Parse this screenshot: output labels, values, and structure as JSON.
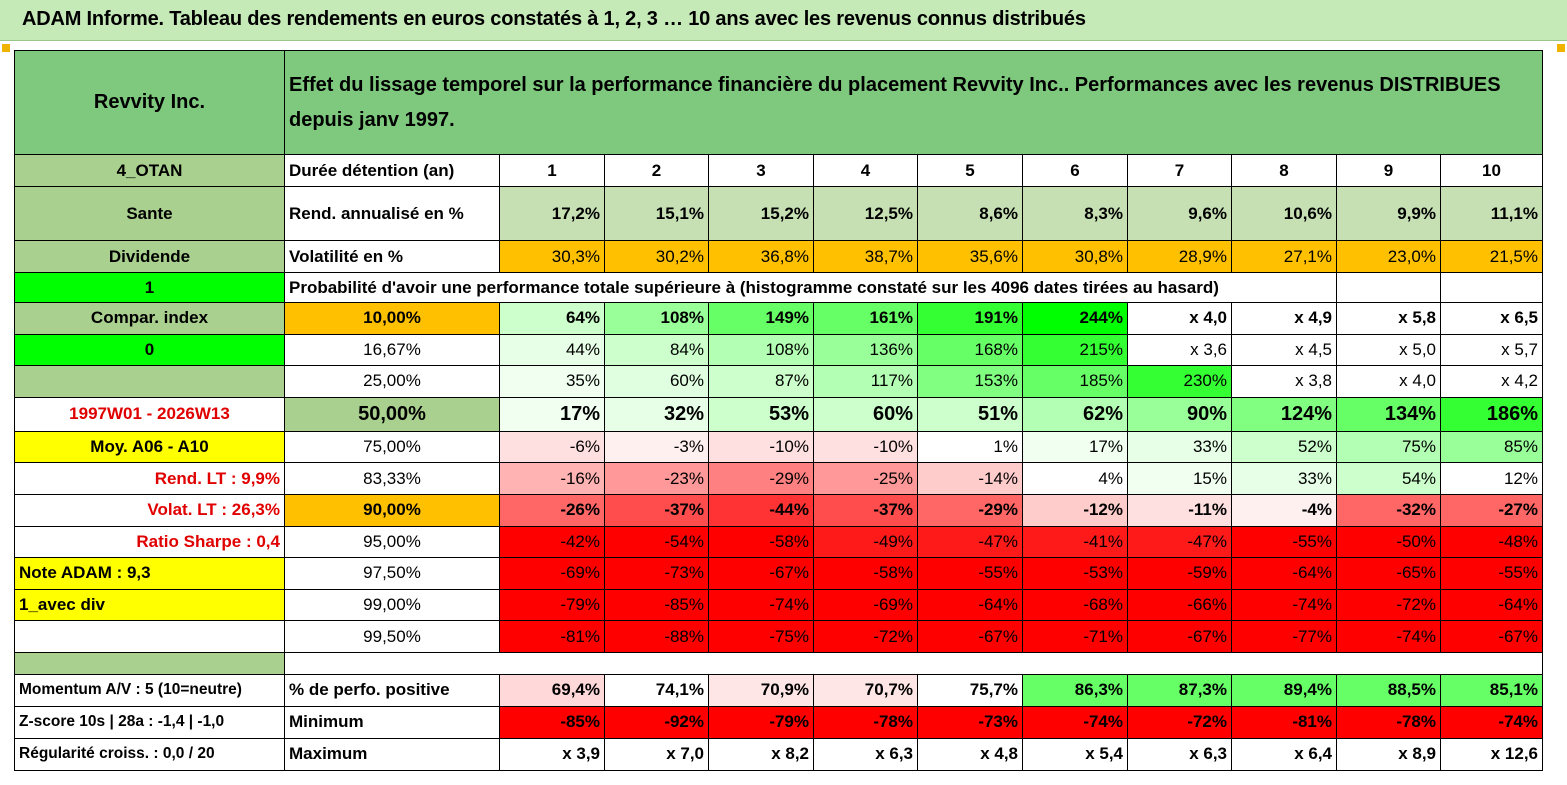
{
  "title": "ADAM Informe. Tableau des rendements en euros constatés à 1, 2, 3 … 10 ans avec les revenus connus distribués",
  "header": {
    "name": "Revvity Inc.",
    "description": "Effet du lissage temporel sur la performance financière du placement Revvity Inc.. Performances avec les revenus DISTRIBUES depuis janv 1997."
  },
  "left": {
    "code": "4_OTAN",
    "sector": "Sante",
    "type": "Dividende",
    "flag1": "1",
    "compar": "Compar. index",
    "flag0": "0",
    "period": "1997W01 - 2026W13",
    "moy": "Moy. A06 - A10",
    "rend_lt": "Rend. LT :   9,9%",
    "volat_lt": "Volat. LT :   26,3%",
    "sharpe": "Ratio Sharpe :    0,4",
    "note": "Note ADAM : 9,3",
    "avec_div": "1_avec div",
    "momentum": "Momentum A/V : 5 (10=neutre)",
    "zscore": "Z-score 10s | 28a : -1,4 | -1,0",
    "regularite": "Régularité croiss. : 0,0 / 20"
  },
  "labels": {
    "duree": "Durée détention (an)",
    "rend": "Rend. annualisé en %",
    "volat": "Volatilité en %",
    "proba": "Probabilité d'avoir une performance totale supérieure à (histogramme constaté sur les 4096 dates tirées au hasard)",
    "pct_pos": "% de perfo. positive",
    "minimum": "Minimum",
    "maximum": "Maximum"
  },
  "years": [
    "1",
    "2",
    "3",
    "4",
    "5",
    "6",
    "7",
    "8",
    "9",
    "10"
  ],
  "rendement": [
    "17,2%",
    "15,1%",
    "15,2%",
    "12,5%",
    "8,6%",
    "8,3%",
    "9,6%",
    "10,6%",
    "9,9%",
    "11,1%"
  ],
  "volatilite": [
    "30,3%",
    "30,2%",
    "36,8%",
    "38,7%",
    "35,6%",
    "30,8%",
    "28,9%",
    "27,1%",
    "23,0%",
    "21,5%"
  ],
  "quantiles": [
    {
      "q": "10,00%",
      "v": [
        "64%",
        "108%",
        "149%",
        "161%",
        "191%",
        "244%",
        "x 4,0",
        "x 4,9",
        "x 5,8",
        "x 6,5"
      ]
    },
    {
      "q": "16,67%",
      "v": [
        "44%",
        "84%",
        "108%",
        "136%",
        "168%",
        "215%",
        "x 3,6",
        "x 4,5",
        "x 5,0",
        "x 5,7"
      ]
    },
    {
      "q": "25,00%",
      "v": [
        "35%",
        "60%",
        "87%",
        "117%",
        "153%",
        "185%",
        "230%",
        "x 3,8",
        "x 4,0",
        "x 4,2"
      ]
    },
    {
      "q": "50,00%",
      "v": [
        "17%",
        "32%",
        "53%",
        "60%",
        "51%",
        "62%",
        "90%",
        "124%",
        "134%",
        "186%"
      ]
    },
    {
      "q": "75,00%",
      "v": [
        "-6%",
        "-3%",
        "-10%",
        "-10%",
        "1%",
        "17%",
        "33%",
        "52%",
        "75%",
        "85%"
      ]
    },
    {
      "q": "83,33%",
      "v": [
        "-16%",
        "-23%",
        "-29%",
        "-25%",
        "-14%",
        "4%",
        "15%",
        "33%",
        "54%",
        "12%"
      ]
    },
    {
      "q": "90,00%",
      "v": [
        "-26%",
        "-37%",
        "-44%",
        "-37%",
        "-29%",
        "-12%",
        "-11%",
        "-4%",
        "-32%",
        "-27%"
      ]
    },
    {
      "q": "95,00%",
      "v": [
        "-42%",
        "-54%",
        "-58%",
        "-49%",
        "-47%",
        "-41%",
        "-47%",
        "-55%",
        "-50%",
        "-48%"
      ]
    },
    {
      "q": "97,50%",
      "v": [
        "-69%",
        "-73%",
        "-67%",
        "-58%",
        "-55%",
        "-53%",
        "-59%",
        "-64%",
        "-65%",
        "-55%"
      ]
    },
    {
      "q": "99,00%",
      "v": [
        "-79%",
        "-85%",
        "-74%",
        "-69%",
        "-64%",
        "-68%",
        "-66%",
        "-74%",
        "-72%",
        "-64%"
      ]
    },
    {
      "q": "99,50%",
      "v": [
        "-81%",
        "-88%",
        "-75%",
        "-72%",
        "-67%",
        "-71%",
        "-67%",
        "-77%",
        "-74%",
        "-67%"
      ]
    }
  ],
  "pct_positive": [
    "69,4%",
    "74,1%",
    "70,9%",
    "70,7%",
    "75,7%",
    "86,3%",
    "87,3%",
    "89,4%",
    "88,5%",
    "85,1%"
  ],
  "minimum": [
    "-85%",
    "-92%",
    "-79%",
    "-78%",
    "-73%",
    "-74%",
    "-72%",
    "-81%",
    "-78%",
    "-74%"
  ],
  "maximum": [
    "x 3,9",
    "x 7,0",
    "x 8,2",
    "x 6,3",
    "x 4,8",
    "x 5,4",
    "x 6,3",
    "x 6,4",
    "x 8,9",
    "x 12,6"
  ],
  "colors": {
    "quantiles": [
      [
        "#ccffcc",
        "#99ff99",
        "#66ff66",
        "#66ff66",
        "#33ff33",
        "#00ff00",
        "#ffffff",
        "#ffffff",
        "#ffffff",
        "#ffffff"
      ],
      [
        "#e6ffe6",
        "#ccffcc",
        "#b3ffb3",
        "#99ff99",
        "#66ff66",
        "#33ff33",
        "#ffffff",
        "#ffffff",
        "#ffffff",
        "#ffffff"
      ],
      [
        "#f0fff0",
        "#e0ffe0",
        "#ccffcc",
        "#b3ffb3",
        "#80ff80",
        "#66ff66",
        "#33ff33",
        "#ffffff",
        "#ffffff",
        "#ffffff"
      ],
      [
        "#f0fff0",
        "#e6ffe6",
        "#ccffcc",
        "#ccffcc",
        "#ccffcc",
        "#b3ffb3",
        "#99ff99",
        "#80ff80",
        "#66ff66",
        "#33ff33"
      ],
      [
        "#ffe0e0",
        "#fff0f0",
        "#ffe0e0",
        "#ffe0e0",
        "#ffffff",
        "#f0fff0",
        "#e6ffe6",
        "#ccffcc",
        "#b3ffb3",
        "#99ff99"
      ],
      [
        "#ffb3b3",
        "#ff9999",
        "#ff8080",
        "#ff9999",
        "#ffcccc",
        "#ffffff",
        "#f0fff0",
        "#e6ffe6",
        "#ccffcc",
        "#ffffff"
      ],
      [
        "#ff6666",
        "#ff4d4d",
        "#ff3333",
        "#ff4d4d",
        "#ff6666",
        "#ffcccc",
        "#ffe0e0",
        "#fff0f0",
        "#ff6666",
        "#ff6666"
      ],
      [
        "#ff0000",
        "#ff0000",
        "#ff0000",
        "#ff1a1a",
        "#ff1a1a",
        "#ff1a1a",
        "#ff1a1a",
        "#ff0000",
        "#ff0000",
        "#ff0000"
      ],
      [
        "#ff0000",
        "#ff0000",
        "#ff0000",
        "#ff0000",
        "#ff0000",
        "#ff0000",
        "#ff0000",
        "#ff0000",
        "#ff0000",
        "#ff0000"
      ],
      [
        "#ff0000",
        "#ff0000",
        "#ff0000",
        "#ff0000",
        "#ff0000",
        "#ff0000",
        "#ff0000",
        "#ff0000",
        "#ff0000",
        "#ff0000"
      ],
      [
        "#ff0000",
        "#ff0000",
        "#ff0000",
        "#ff0000",
        "#ff0000",
        "#ff0000",
        "#ff0000",
        "#ff0000",
        "#ff0000",
        "#ff0000"
      ]
    ],
    "pct_positive": [
      "#ffd9d9",
      "#ffffff",
      "#ffe6e6",
      "#ffe6e6",
      "#ffffff",
      "#66ff66",
      "#66ff66",
      "#66ff66",
      "#66ff66",
      "#66ff66"
    ]
  }
}
